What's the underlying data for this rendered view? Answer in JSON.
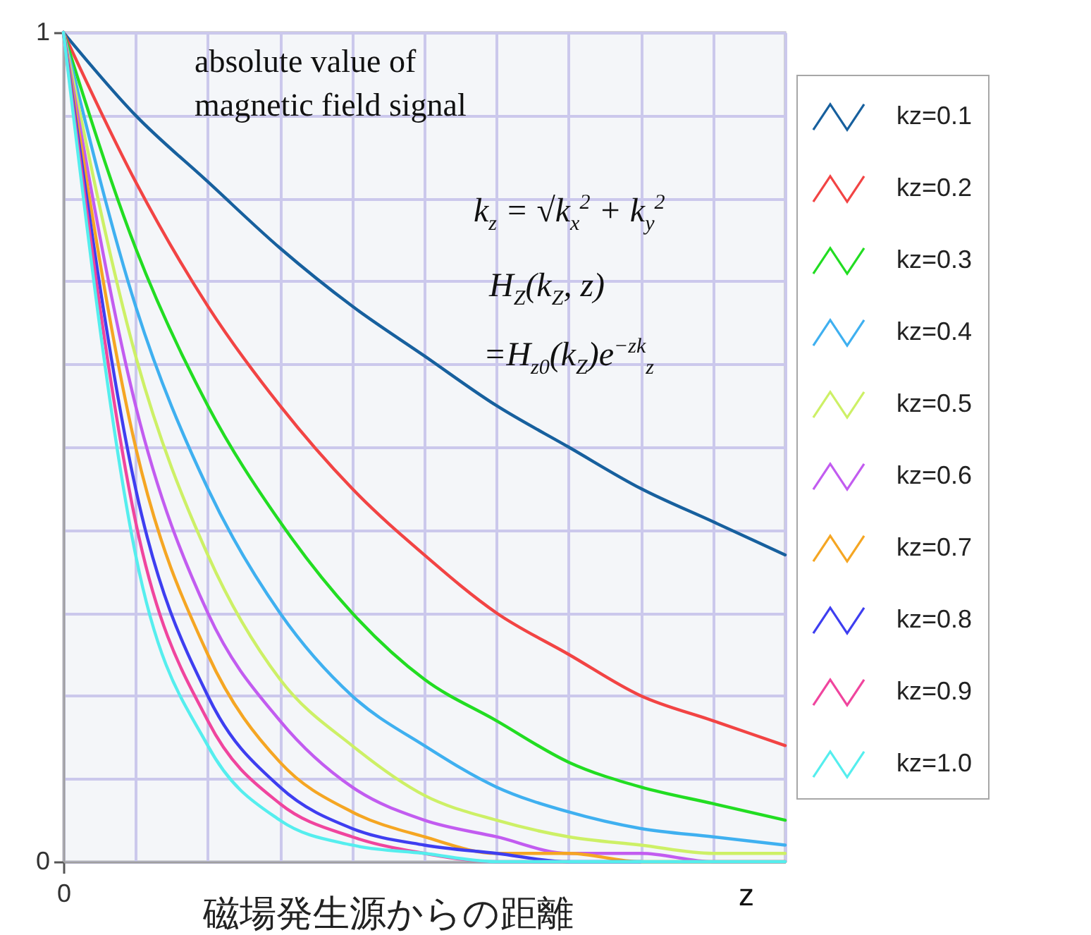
{
  "chart_data": {
    "type": "line",
    "title": "absolute value of magnetic field signal",
    "xlabel": "磁場発生源からの距離",
    "annotations": [
      "k$_{z}$ = √k$_{x}$$^{2}$ + k$_{y}$$^{2}$",
      "H$_{Z}$(k$_{Z}$, z)",
      "=H$_{z0}$(k$_{Z}$)e$^{−zk}$$_{z}$",
      "z"
    ],
    "categories": [
      "0",
      null,
      null,
      null,
      null,
      null,
      null,
      null,
      null,
      null,
      null
    ],
    "series": [
      {
        "name": "kz=0.1",
        "color": "#17609e",
        "values": [
          1,
          0.9,
          0.82,
          0.74,
          0.67,
          0.61,
          0.55,
          0.5,
          0.45,
          0.41,
          0.37
        ]
      },
      {
        "name": "kz=0.2",
        "color": "#f24444",
        "values": [
          1,
          0.82,
          0.67,
          0.55,
          0.45,
          0.37,
          0.3,
          0.25,
          0.2,
          0.17,
          0.14
        ]
      },
      {
        "name": "kz=0.3",
        "color": "#22dd22",
        "values": [
          1,
          0.74,
          0.55,
          0.41,
          0.3,
          0.22,
          0.17,
          0.12,
          0.09,
          0.07,
          0.05
        ]
      },
      {
        "name": "kz=0.4",
        "color": "#3fb0f0",
        "values": [
          1,
          0.67,
          0.45,
          0.3,
          0.2,
          0.14,
          0.09,
          0.06,
          0.04,
          0.03,
          0.02
        ]
      },
      {
        "name": "kz=0.5",
        "color": "#cdf066",
        "values": [
          1,
          0.61,
          0.37,
          0.22,
          0.14,
          0.08,
          0.05,
          0.03,
          0.02,
          0.01,
          0.01
        ]
      },
      {
        "name": "kz=0.6",
        "color": "#c25cf0",
        "values": [
          1,
          0.55,
          0.3,
          0.17,
          0.09,
          0.05,
          0.03,
          0.01,
          0.01,
          0,
          0
        ]
      },
      {
        "name": "kz=0.7",
        "color": "#f5a623",
        "values": [
          1,
          0.5,
          0.25,
          0.12,
          0.06,
          0.03,
          0.01,
          0.01,
          0,
          0,
          0
        ]
      },
      {
        "name": "kz=0.8",
        "color": "#3e3ef0",
        "values": [
          1,
          0.45,
          0.2,
          0.09,
          0.04,
          0.02,
          0.01,
          0,
          0,
          null,
          null
        ]
      },
      {
        "name": "kz=0.9",
        "color": "#f0459e",
        "values": [
          1,
          0.41,
          0.17,
          0.07,
          0.03,
          0.01,
          0,
          0,
          null,
          null,
          null
        ]
      },
      {
        "name": "kz=1.0",
        "color": "#55eeee",
        "values": [
          1,
          0.37,
          0.14,
          0.05,
          0.02,
          0.01,
          0,
          0,
          0,
          0,
          0
        ]
      }
    ],
    "ylim": [
      0,
      1
    ],
    "yticks": [
      0,
      {
        "value": 0.1,
        "label": null
      },
      {
        "value": 0.2,
        "label": null
      },
      {
        "value": 0.3,
        "label": null
      },
      {
        "value": 0.4,
        "label": null
      },
      {
        "value": 0.5,
        "label": null
      },
      {
        "value": 0.6,
        "label": null
      },
      {
        "value": 0.7,
        "label": null
      },
      {
        "value": 0.8,
        "label": null
      },
      {
        "value": 0.9,
        "label": null
      },
      1
    ],
    "grid": true,
    "legend": "right",
    "marker": "none"
  }
}
